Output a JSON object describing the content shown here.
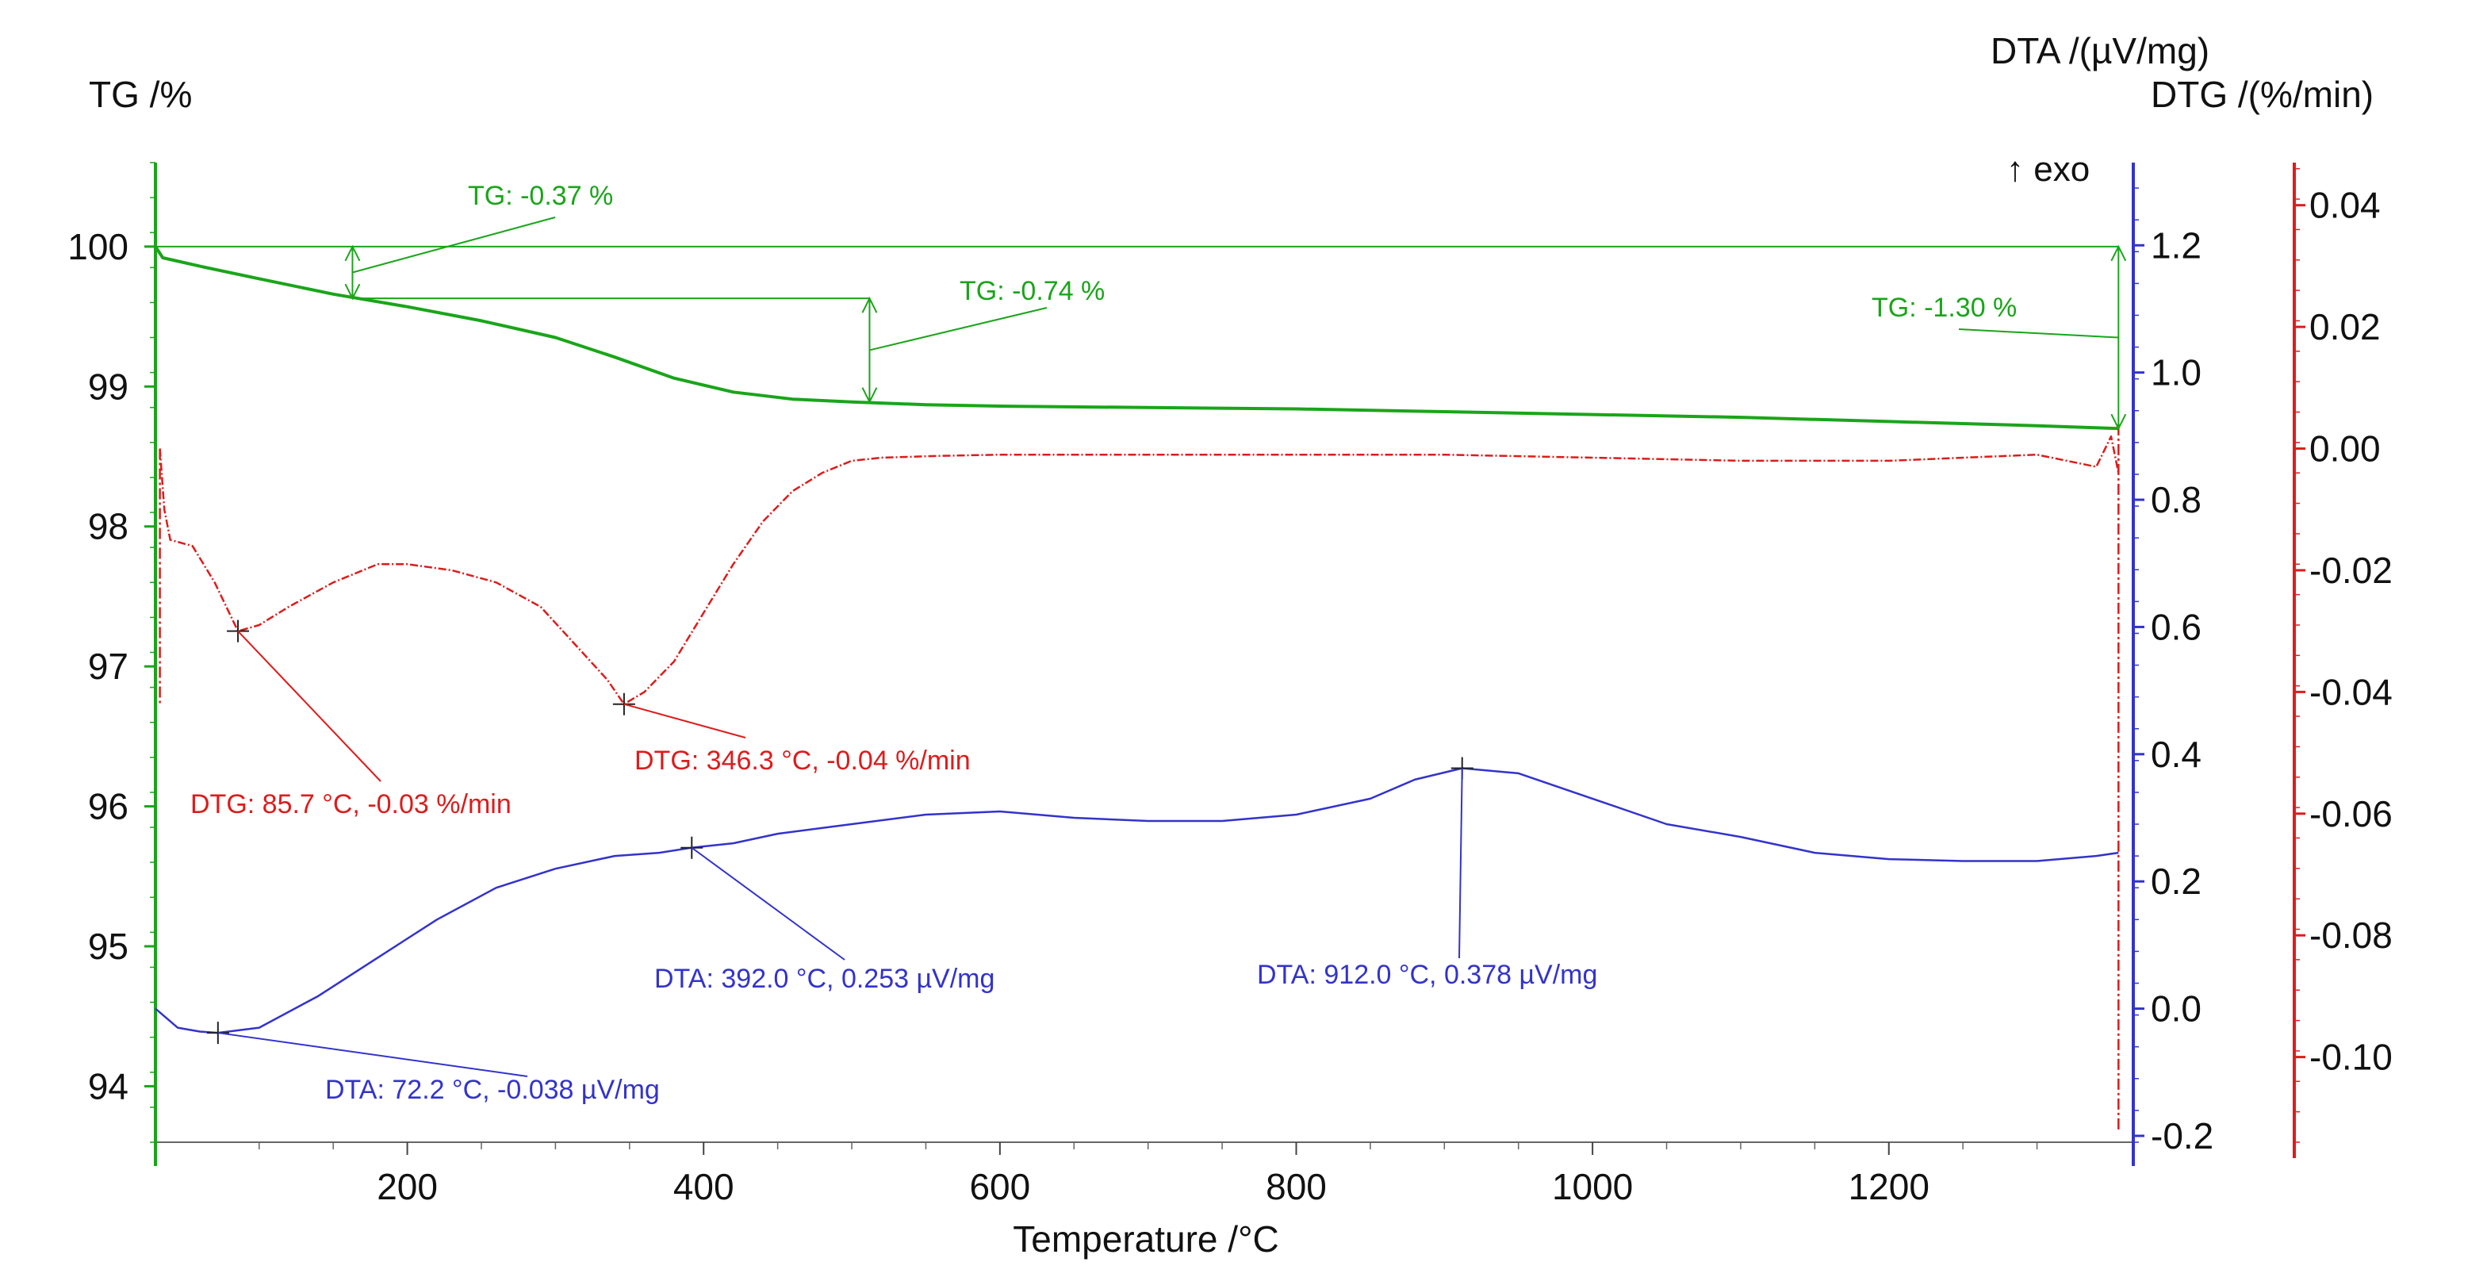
{
  "chart_data": {
    "type": "line",
    "x_label": "Temperature /°C",
    "x_ticks": [
      200,
      400,
      600,
      800,
      1000,
      1200
    ],
    "xlim": [
      30,
      1365
    ],
    "axes": {
      "tg": {
        "label": "TG /%",
        "ylim": [
          93.6,
          100.6
        ],
        "ticks": [
          "100",
          "99",
          "98",
          "97",
          "96",
          "95",
          "94"
        ],
        "tick_values": [
          100,
          99,
          98,
          97,
          96,
          95,
          94
        ],
        "color": "#1aa51a"
      },
      "dta": {
        "label": "DTA /(µV/mg)",
        "ylim": [
          -0.21,
          1.33
        ],
        "ticks": [
          "1.2",
          "1.0",
          "0.8",
          "0.6",
          "0.4",
          "0.2",
          "0.0",
          "-0.2"
        ],
        "tick_values": [
          1.2,
          1.0,
          0.8,
          0.6,
          0.4,
          0.2,
          0.0,
          -0.2
        ],
        "color": "#3333cc",
        "exo_label": "↑ exo"
      },
      "dtg": {
        "label": "DTG /(%/min)",
        "ylim": [
          -0.114,
          0.047
        ],
        "ticks": [
          "0.04",
          "0.02",
          "0.00",
          "-0.02",
          "-0.04",
          "-0.06",
          "-0.08",
          "-0.10"
        ],
        "tick_values": [
          0.04,
          0.02,
          0.0,
          -0.02,
          -0.04,
          -0.06,
          -0.08,
          -0.1
        ],
        "color": "#dd1c1c"
      }
    },
    "series": [
      {
        "name": "TG",
        "axis": "tg",
        "color": "#1aa51a",
        "x": [
          30,
          35,
          60,
          100,
          150,
          200,
          250,
          300,
          340,
          380,
          420,
          460,
          500,
          550,
          600,
          700,
          800,
          900,
          1000,
          1100,
          1200,
          1300,
          1355
        ],
        "y": [
          100.0,
          99.92,
          99.86,
          99.77,
          99.66,
          99.57,
          99.47,
          99.35,
          99.21,
          99.06,
          98.96,
          98.91,
          98.89,
          98.87,
          98.86,
          98.85,
          98.84,
          98.82,
          98.8,
          98.78,
          98.75,
          98.72,
          98.7
        ]
      },
      {
        "name": "DTA",
        "axis": "dta",
        "color": "#3333cc",
        "x": [
          30,
          45,
          60,
          72.2,
          100,
          140,
          180,
          220,
          260,
          300,
          340,
          370,
          392,
          420,
          450,
          500,
          550,
          600,
          650,
          700,
          750,
          800,
          850,
          880,
          912,
          950,
          1000,
          1050,
          1100,
          1150,
          1200,
          1250,
          1300,
          1340,
          1355
        ],
        "y": [
          0.0,
          -0.03,
          -0.036,
          -0.038,
          -0.03,
          0.02,
          0.08,
          0.14,
          0.19,
          0.22,
          0.24,
          0.245,
          0.253,
          0.26,
          0.275,
          0.29,
          0.305,
          0.31,
          0.3,
          0.295,
          0.295,
          0.305,
          0.33,
          0.36,
          0.378,
          0.37,
          0.33,
          0.29,
          0.27,
          0.245,
          0.235,
          0.232,
          0.232,
          0.24,
          0.245
        ]
      },
      {
        "name": "DTG",
        "axis": "dtg",
        "color": "#dd1c1c",
        "dash": true,
        "x": [
          33,
          36,
          40,
          55,
          70,
          85.7,
          100,
          120,
          150,
          180,
          200,
          230,
          260,
          290,
          320,
          335,
          346.3,
          360,
          380,
          400,
          420,
          440,
          460,
          480,
          500,
          520,
          560,
          600,
          700,
          800,
          900,
          1000,
          1100,
          1200,
          1300,
          1340,
          1350,
          1355
        ],
        "y": [
          0.0,
          -0.01,
          -0.015,
          -0.016,
          -0.022,
          -0.03,
          -0.029,
          -0.026,
          -0.022,
          -0.019,
          -0.019,
          -0.02,
          -0.022,
          -0.026,
          -0.034,
          -0.038,
          -0.042,
          -0.04,
          -0.035,
          -0.027,
          -0.019,
          -0.012,
          -0.007,
          -0.004,
          -0.002,
          -0.0015,
          -0.0012,
          -0.001,
          -0.001,
          -0.001,
          -0.001,
          -0.0015,
          -0.002,
          -0.002,
          -0.001,
          -0.003,
          0.002,
          -0.004
        ]
      }
    ],
    "tg_steps": [
      {
        "label": "TG: -0.37 %",
        "x": 163,
        "from": 100.0,
        "to": 99.63
      },
      {
        "label": "TG: -0.74 %",
        "x": 512,
        "from": 99.63,
        "to": 98.89
      },
      {
        "label": "TG: -1.30 %",
        "x": 1355,
        "from": 100.0,
        "to": 98.7
      }
    ],
    "annotations": [
      {
        "axis": "dtg",
        "label": "DTG: 85.7 °C, -0.03 %/min",
        "x": 85.7,
        "y": -0.03
      },
      {
        "axis": "dtg",
        "label": "DTG: 346.3 °C, -0.04 %/min",
        "x": 346.3,
        "y": -0.042
      },
      {
        "axis": "dta",
        "label": "DTA: 72.2 °C, -0.038 µV/mg",
        "x": 72.2,
        "y": -0.038
      },
      {
        "axis": "dta",
        "label": "DTA: 392.0 °C, 0.253 µV/mg",
        "x": 392.0,
        "y": 0.253
      },
      {
        "axis": "dta",
        "label": "DTA: 912.0 °C, 0.378 µV/mg",
        "x": 912.0,
        "y": 0.378
      }
    ]
  }
}
